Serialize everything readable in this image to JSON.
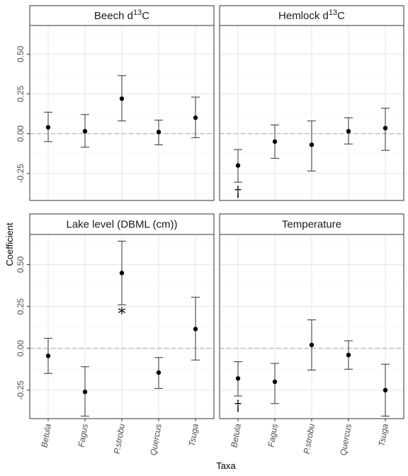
{
  "chart_data": {
    "type": "scatter",
    "subtype": "point-range (coefficient estimate with error bars)",
    "xlabel": "Taxa",
    "ylabel": "Coefficient",
    "categories": [
      "Betula",
      "Fagus",
      "P.strobu",
      "Quercus",
      "Tsuga"
    ],
    "ylim": [
      -0.42,
      0.68
    ],
    "yticks": [
      -0.25,
      0,
      0.25,
      0.5
    ],
    "ytick_labels": [
      "-0.25",
      "0.00",
      "0.25",
      "0.50"
    ],
    "reference_line": 0,
    "grid": true,
    "layout": "2x2 facets, shared axes",
    "panels": [
      {
        "title": "Beech d",
        "title_sup": "13",
        "title_suffix": "C",
        "points": [
          {
            "taxon": "Betula",
            "estimate": 0.04,
            "lower": -0.05,
            "upper": 0.135
          },
          {
            "taxon": "Fagus",
            "estimate": 0.015,
            "lower": -0.085,
            "upper": 0.12
          },
          {
            "taxon": "P.strobu",
            "estimate": 0.22,
            "lower": 0.08,
            "upper": 0.365
          },
          {
            "taxon": "Quercus",
            "estimate": 0.01,
            "lower": -0.07,
            "upper": 0.085
          },
          {
            "taxon": "Tsuga",
            "estimate": 0.1,
            "lower": -0.025,
            "upper": 0.23
          }
        ],
        "annotations": []
      },
      {
        "title": "Hemlock d",
        "title_sup": "13",
        "title_suffix": "C",
        "points": [
          {
            "taxon": "Betula",
            "estimate": -0.2,
            "lower": -0.305,
            "upper": -0.1
          },
          {
            "taxon": "Fagus",
            "estimate": -0.05,
            "lower": -0.155,
            "upper": 0.055
          },
          {
            "taxon": "P.strobu",
            "estimate": -0.07,
            "lower": -0.235,
            "upper": 0.08
          },
          {
            "taxon": "Quercus",
            "estimate": 0.015,
            "lower": -0.065,
            "upper": 0.1
          },
          {
            "taxon": "Tsuga",
            "estimate": 0.035,
            "lower": -0.105,
            "upper": 0.16
          }
        ],
        "annotations": [
          {
            "taxon": "Betula",
            "symbol": "†"
          }
        ]
      },
      {
        "title": "Lake level (DBML (cm))",
        "points": [
          {
            "taxon": "Betula",
            "estimate": -0.045,
            "lower": -0.15,
            "upper": 0.06
          },
          {
            "taxon": "Fagus",
            "estimate": -0.26,
            "lower": -0.405,
            "upper": -0.11
          },
          {
            "taxon": "P.strobu",
            "estimate": 0.45,
            "lower": 0.26,
            "upper": 0.64
          },
          {
            "taxon": "Quercus",
            "estimate": -0.145,
            "lower": -0.24,
            "upper": -0.055
          },
          {
            "taxon": "Tsuga",
            "estimate": 0.115,
            "lower": -0.07,
            "upper": 0.305
          }
        ],
        "annotations": [
          {
            "taxon": "P.strobu",
            "symbol": "*"
          }
        ]
      },
      {
        "title": "Temperature",
        "points": [
          {
            "taxon": "Betula",
            "estimate": -0.18,
            "lower": -0.285,
            "upper": -0.08
          },
          {
            "taxon": "Fagus",
            "estimate": -0.2,
            "lower": -0.33,
            "upper": -0.09
          },
          {
            "taxon": "P.strobu",
            "estimate": 0.02,
            "lower": -0.13,
            "upper": 0.17
          },
          {
            "taxon": "Quercus",
            "estimate": -0.04,
            "lower": -0.125,
            "upper": 0.045
          },
          {
            "taxon": "Tsuga",
            "estimate": -0.25,
            "lower": -0.405,
            "upper": -0.095
          }
        ],
        "annotations": [
          {
            "taxon": "Betula",
            "symbol": "†"
          }
        ]
      }
    ]
  }
}
